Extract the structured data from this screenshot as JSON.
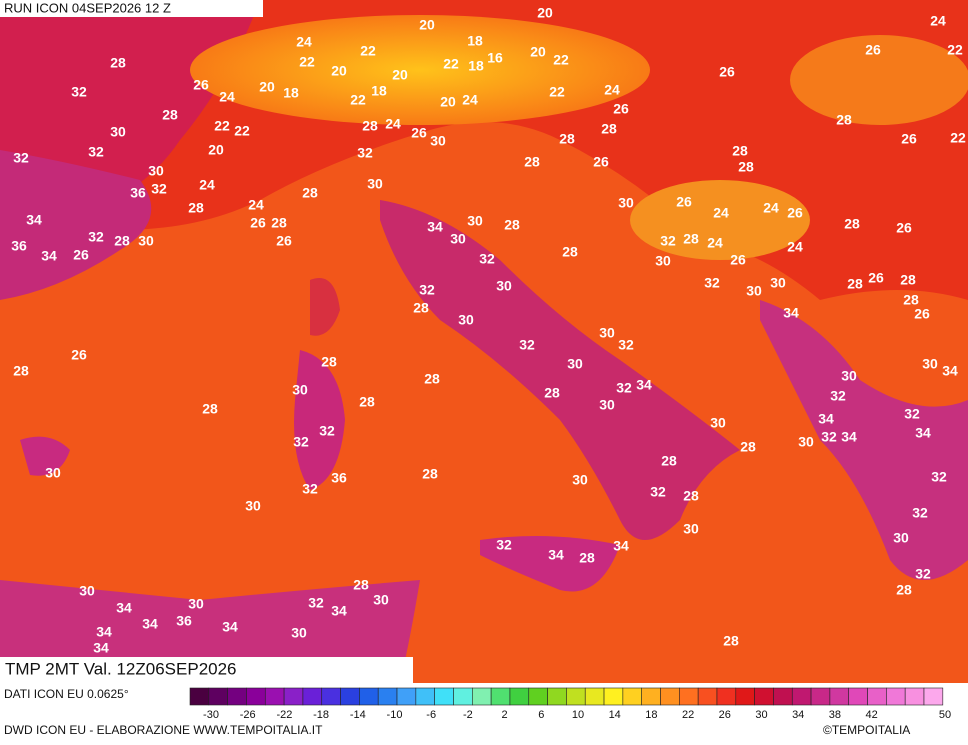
{
  "header": {
    "title": "RUN ICON 04SEP2026 12 Z"
  },
  "footer": {
    "validity": "TMP 2MT Val. 12Z06SEP2026",
    "source": "DATI ICON EU 0.0625°",
    "credit": "DWD ICON EU - ELABORAZIONE WWW.TEMPOITALIA.IT",
    "brand": "©TEMPOITALIA"
  },
  "colorbar": {
    "ticks": [
      -30,
      -26,
      -22,
      -18,
      -14,
      -10,
      -6,
      -2,
      2,
      6,
      10,
      14,
      18,
      22,
      26,
      30,
      34,
      38,
      42,
      50
    ]
  },
  "map": {
    "labels": [
      20,
      24,
      20,
      24,
      22,
      18,
      20,
      16,
      26,
      22,
      28,
      22,
      20,
      22,
      22,
      18,
      20,
      26,
      26,
      24,
      20,
      18,
      22,
      18,
      22,
      24,
      32,
      20,
      24,
      26,
      28,
      22,
      22,
      28,
      24,
      26,
      30,
      28,
      28,
      28,
      26,
      22,
      30,
      32,
      20,
      32,
      28,
      28,
      26,
      28,
      32,
      30,
      32,
      36,
      24,
      30,
      28,
      28,
      24,
      30,
      26,
      24,
      24,
      26,
      28,
      26,
      34,
      26,
      28,
      34,
      30,
      28,
      32,
      28,
      30,
      26,
      30,
      32,
      28,
      24,
      24,
      36,
      34,
      26,
      32,
      28,
      30,
      26,
      26,
      28,
      32,
      30,
      30,
      28,
      28,
      32,
      30,
      28,
      26,
      34,
      30,
      30,
      32,
      32,
      26,
      28,
      30,
      28,
      30,
      34,
      30,
      28,
      30,
      32,
      34,
      28,
      32,
      28,
      28,
      30,
      34,
      32,
      30,
      32,
      30,
      32,
      34,
      34,
      28,
      32,
      28,
      30,
      28,
      36,
      30,
      32,
      32,
      28,
      32,
      30,
      32,
      30,
      30,
      32,
      34,
      34,
      28,
      32,
      30,
      28,
      28,
      30,
      30,
      34,
      32,
      34,
      34,
      36,
      34,
      34,
      30,
      34,
      28
    ]
  }
}
